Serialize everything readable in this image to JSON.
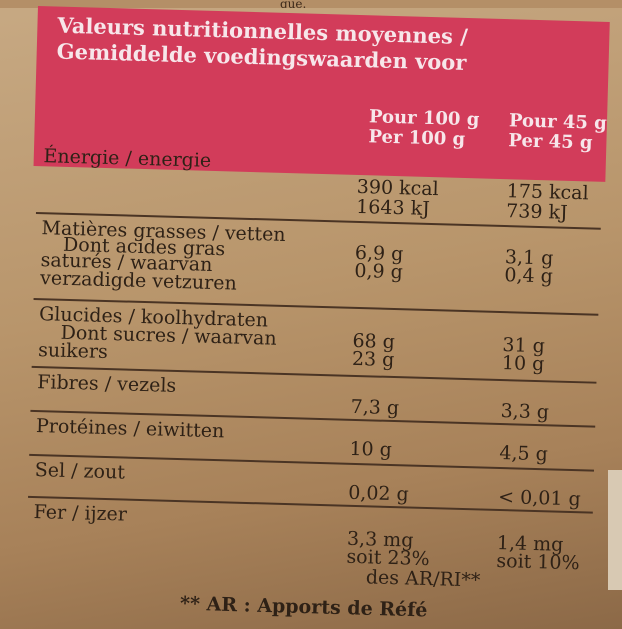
{
  "top_text": "que.",
  "header": {
    "title_line1": "Valeurs nutritionnelles moyennes /",
    "title_line2": "Gemiddelde voedingswaarden voor",
    "col1_line1": "Pour 100 g",
    "col1_line2": "Per 100 g",
    "col2_line1": "Pour 45 g",
    "col2_line2": "Per 45 g"
  },
  "rows": [
    {
      "label": [
        "Énergie / energie"
      ],
      "v100": [
        "390 kcal",
        "1643 kJ"
      ],
      "v45": [
        "175 kcal",
        "739 kJ"
      ]
    },
    {
      "label": [
        "Matières grasses / vetten",
        "Dont acides gras",
        "saturés / waarvan",
        "verzadigde vetzuren"
      ],
      "v100": [
        "6,9 g",
        "0,9 g"
      ],
      "v45": [
        "3,1 g",
        "0,4 g"
      ]
    },
    {
      "label": [
        "Glucides / koolhydraten",
        "Dont sucres / waarvan",
        "suikers"
      ],
      "v100": [
        "68 g",
        "23 g"
      ],
      "v45": [
        "31 g",
        "10 g"
      ]
    },
    {
      "label": [
        "Fibres / vezels"
      ],
      "v100": [
        "7,3 g"
      ],
      "v45": [
        "3,3 g"
      ]
    },
    {
      "label": [
        "Protéines / eiwitten"
      ],
      "v100": [
        "10 g"
      ],
      "v45": [
        "4,5 g"
      ]
    },
    {
      "label": [
        "Sel / zout"
      ],
      "v100": [
        "0,02 g"
      ],
      "v45": [
        "< 0,01 g"
      ]
    },
    {
      "label": [
        "Fer / ijzer"
      ],
      "v100": [
        "3,3 mg",
        "soit 23%",
        "des AR/RI**"
      ],
      "v45": [
        "1,4 mg",
        "soit 10%"
      ]
    }
  ],
  "footer": "** AR : Apports de Réfé"
}
